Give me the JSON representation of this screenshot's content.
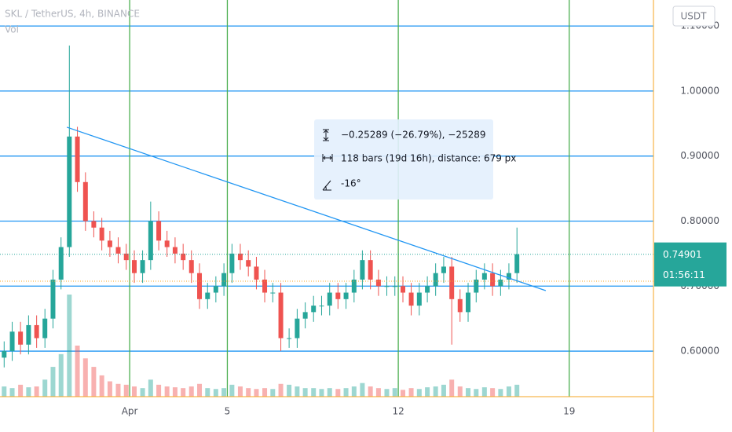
{
  "chart_data": {
    "type": "candlestick",
    "title": "SKL / TetherUS, 4h, BINANCE",
    "volume_label": "Vol",
    "currency": "USDT",
    "x": [
      -4.14,
      -3.81,
      -3.47,
      -3.14,
      -2.81,
      -2.47,
      -2.14,
      -1.81,
      -1.47,
      -1.14,
      -0.81,
      -0.47,
      -0.14,
      0.19,
      0.53,
      0.86,
      1.19,
      1.53,
      1.86,
      2.19,
      2.53,
      2.86,
      3.19,
      3.53,
      3.86,
      4.19,
      4.53,
      4.86,
      5.19,
      5.53,
      5.86,
      6.19,
      6.53,
      6.86,
      7.19,
      7.53,
      7.86,
      8.19,
      8.53,
      8.86,
      9.19,
      9.53,
      9.86,
      10.19,
      10.53,
      10.86,
      11.19,
      11.53,
      11.86,
      12.19,
      12.53,
      12.86,
      13.19,
      13.53,
      13.86,
      14.19,
      14.53,
      14.86,
      15.19,
      15.53,
      15.86,
      16.19,
      16.53,
      16.86
    ],
    "open": [
      0.59,
      0.6,
      0.63,
      0.61,
      0.64,
      0.62,
      0.65,
      0.71,
      0.76,
      0.93,
      0.86,
      0.8,
      0.79,
      0.77,
      0.76,
      0.75,
      0.74,
      0.72,
      0.74,
      0.8,
      0.77,
      0.76,
      0.75,
      0.74,
      0.72,
      0.68,
      0.69,
      0.7,
      0.72,
      0.75,
      0.74,
      0.73,
      0.71,
      0.69,
      0.69,
      0.62,
      0.62,
      0.65,
      0.66,
      0.67,
      0.67,
      0.69,
      0.68,
      0.69,
      0.71,
      0.74,
      0.71,
      0.7,
      0.7,
      0.7,
      0.69,
      0.67,
      0.69,
      0.7,
      0.72,
      0.73,
      0.68,
      0.66,
      0.69,
      0.71,
      0.72,
      0.7,
      0.71,
      0.72
    ],
    "high": [
      0.615,
      0.645,
      0.645,
      0.655,
      0.655,
      0.665,
      0.725,
      0.775,
      1.07,
      0.945,
      0.875,
      0.815,
      0.805,
      0.785,
      0.775,
      0.765,
      0.755,
      0.755,
      0.83,
      0.815,
      0.785,
      0.775,
      0.765,
      0.755,
      0.735,
      0.705,
      0.715,
      0.735,
      0.765,
      0.765,
      0.755,
      0.745,
      0.725,
      0.705,
      0.705,
      0.635,
      0.665,
      0.675,
      0.685,
      0.685,
      0.705,
      0.705,
      0.705,
      0.725,
      0.755,
      0.755,
      0.725,
      0.715,
      0.715,
      0.715,
      0.705,
      0.705,
      0.715,
      0.735,
      0.745,
      0.745,
      0.695,
      0.705,
      0.725,
      0.735,
      0.735,
      0.725,
      0.735,
      0.79
    ],
    "low": [
      0.575,
      0.585,
      0.595,
      0.595,
      0.605,
      0.605,
      0.635,
      0.695,
      0.745,
      0.845,
      0.785,
      0.775,
      0.755,
      0.745,
      0.735,
      0.725,
      0.705,
      0.705,
      0.725,
      0.755,
      0.745,
      0.735,
      0.725,
      0.705,
      0.665,
      0.665,
      0.675,
      0.685,
      0.705,
      0.725,
      0.715,
      0.695,
      0.675,
      0.675,
      0.6,
      0.605,
      0.605,
      0.635,
      0.645,
      0.655,
      0.655,
      0.665,
      0.665,
      0.675,
      0.695,
      0.695,
      0.685,
      0.685,
      0.685,
      0.675,
      0.655,
      0.655,
      0.675,
      0.685,
      0.705,
      0.61,
      0.645,
      0.645,
      0.675,
      0.695,
      0.685,
      0.685,
      0.695,
      0.705
    ],
    "close": [
      0.6,
      0.63,
      0.61,
      0.64,
      0.62,
      0.65,
      0.71,
      0.76,
      0.93,
      0.86,
      0.8,
      0.79,
      0.77,
      0.76,
      0.75,
      0.74,
      0.72,
      0.74,
      0.8,
      0.77,
      0.76,
      0.75,
      0.74,
      0.72,
      0.68,
      0.69,
      0.7,
      0.72,
      0.75,
      0.74,
      0.73,
      0.71,
      0.69,
      0.69,
      0.62,
      0.62,
      0.65,
      0.66,
      0.67,
      0.67,
      0.69,
      0.68,
      0.69,
      0.71,
      0.74,
      0.71,
      0.7,
      0.7,
      0.7,
      0.69,
      0.67,
      0.69,
      0.7,
      0.72,
      0.73,
      0.68,
      0.66,
      0.69,
      0.71,
      0.72,
      0.7,
      0.71,
      0.72,
      0.749
    ],
    "volume": [
      12,
      10,
      14,
      11,
      12,
      20,
      35,
      50,
      120,
      60,
      45,
      35,
      25,
      18,
      15,
      14,
      12,
      10,
      20,
      14,
      12,
      11,
      10,
      12,
      15,
      10,
      9,
      10,
      14,
      12,
      10,
      9,
      10,
      9,
      15,
      14,
      12,
      10,
      10,
      9,
      10,
      9,
      10,
      12,
      16,
      12,
      10,
      9,
      10,
      8,
      10,
      9,
      11,
      12,
      14,
      20,
      12,
      10,
      9,
      11,
      10,
      9,
      12,
      14
    ],
    "xlim": [
      -4.31,
      22.45
    ],
    "xticks": [
      {
        "value": 1,
        "label": "Apr"
      },
      5,
      12,
      19
    ],
    "ylim": [
      0.53,
      1.14
    ],
    "yticks": [
      {
        "value": 0.6,
        "label": "0.60000"
      },
      {
        "value": 0.7,
        "label": "0.70000"
      },
      {
        "value": 0.8,
        "label": "0.80000"
      },
      {
        "value": 0.9,
        "label": "0.90000"
      },
      {
        "value": 1.0,
        "label": "1.00000"
      },
      {
        "value": 1.1,
        "label": "1.10000"
      }
    ],
    "last_price": 0.74901,
    "countdown": "01:56:11",
    "reference_price": 0.7075,
    "trend_line": {
      "x": [
        -1.57,
        18.04
      ],
      "y": [
        0.9444,
        0.6931
      ]
    },
    "measure": {
      "price_change": "−0.25289 (−26.79%), −25289",
      "bars": "118 bars (19d 16h), distance: 679 px",
      "angle": "-16°"
    },
    "up_color": "#26a69a",
    "down_color": "#ef5350",
    "grid_x_color": "#4caf50",
    "grid_y_color": "#2196f3"
  }
}
